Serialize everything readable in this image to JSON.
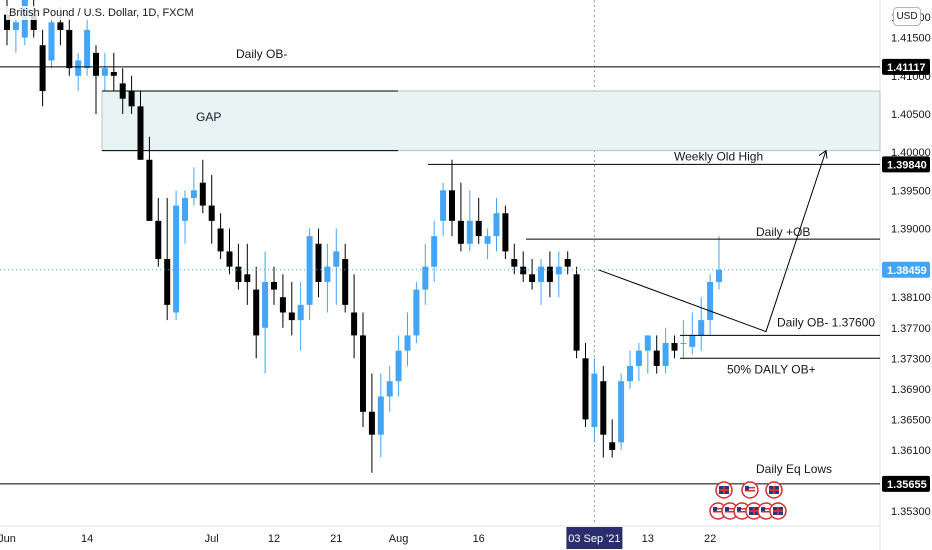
{
  "chart_title": "British Pound / U.S. Dollar, 1D, FXCM",
  "currency_button": "USD",
  "colors": {
    "up": "#42a5f5",
    "down": "#000000",
    "axis_text": "#131722",
    "line": "#000000",
    "gap_fill": "#e8f4f4",
    "crosshair": "#9598a1",
    "date_badge": "#2a2e6e"
  },
  "chart_data": {
    "type": "candlestick",
    "title": "British Pound / U.S. Dollar, 1D, FXCM",
    "ylim": [
      1.3513,
      1.4194
    ],
    "y_ticks": [
      "1.41500",
      "1.41000",
      "1.40500",
      "1.40000",
      "1.39500",
      "1.39000",
      "1.38100",
      "1.37700",
      "1.37300",
      "1.36900",
      "1.36500",
      "1.36100",
      "1.35300"
    ],
    "y_tick_values": [
      1.415,
      1.41,
      1.405,
      1.4,
      1.395,
      1.39,
      1.381,
      1.377,
      1.373,
      1.369,
      1.365,
      1.361,
      1.353
    ],
    "top_tick_partial": "1.42000",
    "x_labels": [
      {
        "label": "Jun",
        "bar": 0
      },
      {
        "label": "14",
        "bar": 9
      },
      {
        "label": "Jul",
        "bar": 23
      },
      {
        "label": "12",
        "bar": 30
      },
      {
        "label": "21",
        "bar": 37
      },
      {
        "label": "Aug",
        "bar": 44
      },
      {
        "label": "16",
        "bar": 53
      },
      {
        "label": "13",
        "bar": 72
      },
      {
        "label": "22",
        "bar": 79
      }
    ],
    "current_date_badge": "03 Sep '21",
    "current_bar": 66,
    "candles": [
      [
        1.418,
        1.42,
        1.414,
        1.416
      ],
      [
        1.416,
        1.419,
        1.413,
        1.417
      ],
      [
        1.415,
        1.42,
        1.414,
        1.42
      ],
      [
        1.418,
        1.42,
        1.415,
        1.416
      ],
      [
        1.414,
        1.416,
        1.406,
        1.408
      ],
      [
        1.412,
        1.418,
        1.411,
        1.417
      ],
      [
        1.417,
        1.419,
        1.414,
        1.416
      ],
      [
        1.416,
        1.418,
        1.41,
        1.411
      ],
      [
        1.41,
        1.413,
        1.408,
        1.412
      ],
      [
        1.411,
        1.418,
        1.41,
        1.416
      ],
      [
        1.413,
        1.414,
        1.405,
        1.41
      ],
      [
        1.41,
        1.413,
        1.408,
        1.411
      ],
      [
        1.4105,
        1.413,
        1.408,
        1.41
      ],
      [
        1.409,
        1.411,
        1.405,
        1.407
      ],
      [
        1.408,
        1.41,
        1.405,
        1.406
      ],
      [
        1.406,
        1.408,
        1.399,
        1.399
      ],
      [
        1.399,
        1.402,
        1.391,
        1.391
      ],
      [
        1.391,
        1.394,
        1.385,
        1.386
      ],
      [
        1.386,
        1.394,
        1.378,
        1.38
      ],
      [
        1.379,
        1.395,
        1.378,
        1.393
      ],
      [
        1.391,
        1.395,
        1.388,
        1.394
      ],
      [
        1.394,
        1.398,
        1.393,
        1.395
      ],
      [
        1.396,
        1.399,
        1.392,
        1.393
      ],
      [
        1.393,
        1.397,
        1.388,
        1.391
      ],
      [
        1.39,
        1.392,
        1.386,
        1.387
      ],
      [
        1.387,
        1.39,
        1.384,
        1.385
      ],
      [
        1.385,
        1.388,
        1.382,
        1.383
      ],
      [
        1.384,
        1.388,
        1.38,
        1.383
      ],
      [
        1.382,
        1.385,
        1.373,
        1.376
      ],
      [
        1.377,
        1.387,
        1.371,
        1.383
      ],
      [
        1.383,
        1.385,
        1.38,
        1.382
      ],
      [
        1.381,
        1.384,
        1.377,
        1.379
      ],
      [
        1.379,
        1.383,
        1.376,
        1.378
      ],
      [
        1.378,
        1.383,
        1.374,
        1.38
      ],
      [
        1.38,
        1.39,
        1.378,
        1.389
      ],
      [
        1.388,
        1.39,
        1.381,
        1.383
      ],
      [
        1.383,
        1.388,
        1.379,
        1.385
      ],
      [
        1.385,
        1.39,
        1.38,
        1.387
      ],
      [
        1.386,
        1.388,
        1.379,
        1.38
      ],
      [
        1.379,
        1.384,
        1.373,
        1.376
      ],
      [
        1.376,
        1.379,
        1.364,
        1.366
      ],
      [
        1.366,
        1.371,
        1.358,
        1.363
      ],
      [
        1.363,
        1.371,
        1.36,
        1.368
      ],
      [
        1.368,
        1.372,
        1.366,
        1.37
      ],
      [
        1.37,
        1.376,
        1.368,
        1.374
      ],
      [
        1.374,
        1.379,
        1.372,
        1.376
      ],
      [
        1.376,
        1.383,
        1.375,
        1.382
      ],
      [
        1.382,
        1.388,
        1.38,
        1.385
      ],
      [
        1.385,
        1.391,
        1.383,
        1.389
      ],
      [
        1.391,
        1.396,
        1.389,
        1.395
      ],
      [
        1.395,
        1.399,
        1.389,
        1.391
      ],
      [
        1.391,
        1.396,
        1.387,
        1.388
      ],
      [
        1.388,
        1.395,
        1.387,
        1.391
      ],
      [
        1.391,
        1.394,
        1.388,
        1.389
      ],
      [
        1.388,
        1.39,
        1.386,
        1.389
      ],
      [
        1.389,
        1.394,
        1.387,
        1.392
      ],
      [
        1.392,
        1.393,
        1.386,
        1.387
      ],
      [
        1.386,
        1.388,
        1.384,
        1.385
      ],
      [
        1.385,
        1.387,
        1.383,
        1.384
      ],
      [
        1.384,
        1.386,
        1.382,
        1.383
      ],
      [
        1.383,
        1.386,
        1.38,
        1.385
      ],
      [
        1.385,
        1.387,
        1.381,
        1.383
      ],
      [
        1.384,
        1.387,
        1.381,
        1.385
      ],
      [
        1.386,
        1.387,
        1.384,
        1.385
      ],
      [
        1.384,
        1.385,
        1.373,
        1.374
      ],
      [
        1.373,
        1.375,
        1.364,
        1.365
      ],
      [
        1.364,
        1.373,
        1.362,
        1.371
      ],
      [
        1.37,
        1.372,
        1.36,
        1.363
      ],
      [
        1.362,
        1.365,
        1.36,
        1.361
      ],
      [
        1.362,
        1.371,
        1.361,
        1.37
      ],
      [
        1.37,
        1.374,
        1.369,
        1.372
      ],
      [
        1.372,
        1.375,
        1.37,
        1.374
      ],
      [
        1.374,
        1.376,
        1.371,
        1.376
      ],
      [
        1.374,
        1.376,
        1.371,
        1.372
      ],
      [
        1.372,
        1.377,
        1.371,
        1.375
      ],
      [
        1.375,
        1.376,
        1.373,
        1.374
      ],
      [
        1.375,
        1.378,
        1.373,
        1.375
      ],
      [
        1.3745,
        1.379,
        1.3735,
        1.376
      ],
      [
        1.376,
        1.381,
        1.374,
        1.378
      ],
      [
        1.378,
        1.384,
        1.376,
        1.383
      ],
      [
        1.383,
        1.389,
        1.382,
        1.3846
      ]
    ],
    "levels": [
      {
        "label": "Daily OB-",
        "price": 1.41117,
        "badge": "1.41117"
      },
      {
        "label": "Weekly Old High",
        "price": 1.3984,
        "badge": "1.39840"
      },
      {
        "label": "Daily +OB",
        "price": 1.3886,
        "badge": ""
      },
      {
        "label": "Daily OB- 1.37600",
        "price": 1.376,
        "badge": ""
      },
      {
        "label": "50% DAILY OB+",
        "price": 1.373,
        "badge": ""
      },
      {
        "label": "Daily Eq Lows",
        "price": 1.35655,
        "badge": "1.35655"
      }
    ],
    "gap_zone": {
      "label": "GAP",
      "top": 1.408,
      "bottom": 1.4002
    },
    "current_price": {
      "value": 1.38459,
      "badge": "1.38459"
    },
    "projection": [
      [
        1.38459,
        1.3765
      ],
      [
        1.3765,
        1.4002
      ]
    ],
    "event_markers": [
      "uk-flag",
      "us-flag",
      "uk-flag",
      "us-flag",
      "us-flag",
      "us-flag",
      "uk-flag",
      "us-flag",
      "uk-flag"
    ]
  }
}
